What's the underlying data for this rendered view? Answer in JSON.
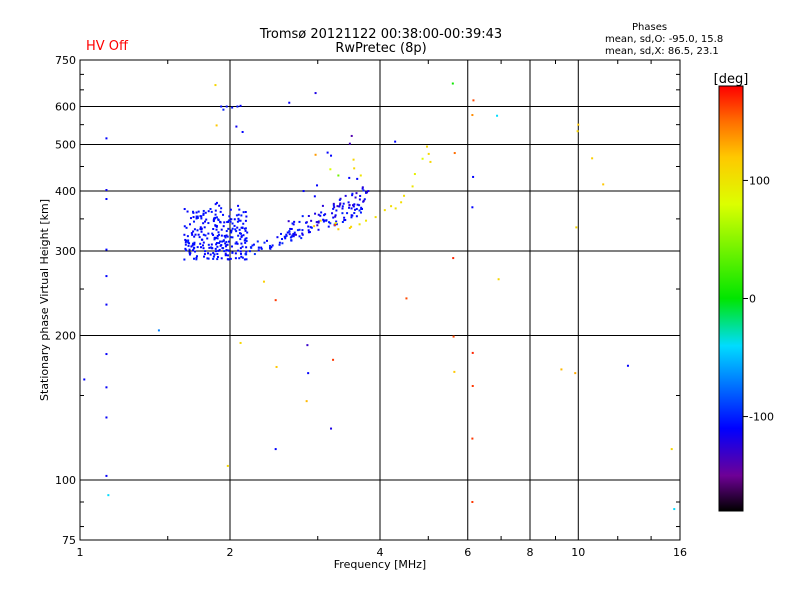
{
  "header": {
    "title_line1": "Tromsø 20121122 00:38:00-00:39:43",
    "title_line2": "RwPretec (8p)",
    "hv_status": "HV Off",
    "phases_title": "Phases",
    "phases_o": "mean, sd,O: -95.0, 15.8",
    "phases_x": "mean, sd,X: 86.5, 23.1"
  },
  "colorbar": {
    "label": "[deg]",
    "ticks": [
      100,
      0,
      -100
    ],
    "range": [
      -180,
      180
    ]
  },
  "chart_data": {
    "type": "scatter",
    "xlabel": "Frequency [MHz]",
    "ylabel": "Stationary phase Virtual Height [km]",
    "x_scale": "log",
    "y_scale": "log",
    "xlim": [
      1,
      16
    ],
    "ylim": [
      75,
      750
    ],
    "x_ticks": [
      1,
      2,
      4,
      6,
      8,
      10,
      16
    ],
    "x_ticklabels": [
      "1",
      "2",
      "4",
      "6",
      "8",
      "10",
      "16"
    ],
    "y_ticks": [
      75,
      100,
      200,
      300,
      400,
      500,
      600,
      750
    ],
    "y_ticklabels": [
      "75",
      "100",
      "200",
      "300",
      "400",
      "500",
      "600",
      "750"
    ],
    "grid": true,
    "series": [
      {
        "points": [
          [
            1.13,
            515,
            -110
          ],
          [
            1.13,
            402,
            -115
          ],
          [
            1.13,
            385,
            -110
          ],
          [
            1.13,
            302,
            -110
          ],
          [
            1.13,
            266,
            -110
          ],
          [
            1.13,
            232,
            -112
          ],
          [
            1.13,
            183,
            -112
          ],
          [
            1.13,
            156,
            -112
          ],
          [
            1.13,
            135,
            -112
          ],
          [
            1.13,
            102,
            -112
          ],
          [
            1.14,
            93,
            -40
          ],
          [
            1.44,
            205,
            -70
          ],
          [
            1.62,
            288,
            -105
          ],
          [
            1.87,
            665,
            110
          ],
          [
            1.88,
            548,
            120
          ],
          [
            1.92,
            600,
            -105
          ],
          [
            1.94,
            591,
            -100
          ],
          [
            1.97,
            600,
            -105
          ],
          [
            2.02,
            597,
            -105
          ],
          [
            2.07,
            600,
            -105
          ],
          [
            2.1,
            602,
            -110
          ],
          [
            2.06,
            545,
            -115
          ],
          [
            2.12,
            531,
            -110
          ],
          [
            2.63,
            611,
            -112
          ],
          [
            2.97,
            640,
            -120
          ],
          [
            3.51,
            521,
            -140
          ],
          [
            3.48,
            502,
            -135
          ],
          [
            2.97,
            476,
            135
          ],
          [
            2.99,
            411,
            -110
          ],
          [
            2.81,
            400,
            -110
          ],
          [
            2.96,
            390,
            -110
          ],
          [
            3.14,
            481,
            -110
          ],
          [
            3.19,
            474,
            -110
          ],
          [
            3.18,
            444,
            80
          ],
          [
            3.3,
            431,
            40
          ],
          [
            3.47,
            426,
            -110
          ],
          [
            3.6,
            424,
            -110
          ],
          [
            3.66,
            431,
            100
          ],
          [
            3.55,
            446,
            110
          ],
          [
            3.54,
            465,
            110
          ],
          [
            4.29,
            507,
            -110
          ],
          [
            4.97,
            495,
            110
          ],
          [
            5.01,
            478,
            110
          ],
          [
            5.05,
            460,
            110
          ],
          [
            5.65,
            480,
            150
          ],
          [
            4.87,
            467,
            80
          ],
          [
            4.7,
            434,
            90
          ],
          [
            4.65,
            409,
            100
          ],
          [
            4.47,
            391,
            105
          ],
          [
            4.41,
            379,
            105
          ],
          [
            4.3,
            368,
            100
          ],
          [
            4.21,
            372,
            105
          ],
          [
            4.09,
            365,
            105
          ],
          [
            3.92,
            353,
            105
          ],
          [
            3.75,
            347,
            100
          ],
          [
            3.64,
            341,
            100
          ],
          [
            3.5,
            337,
            110
          ],
          [
            3.3,
            333,
            115
          ],
          [
            3.26,
            343,
            80
          ],
          [
            3.04,
            347,
            110
          ],
          [
            2.95,
            338,
            120
          ],
          [
            3.79,
            400,
            -120
          ],
          [
            6.16,
            618,
            160
          ],
          [
            6.13,
            576,
            140
          ],
          [
            6.15,
            428,
            -110
          ],
          [
            6.13,
            370,
            -110
          ],
          [
            5.61,
            290,
            170
          ],
          [
            4.52,
            239,
            160
          ],
          [
            3.48,
            335,
            115
          ],
          [
            3.25,
            340,
            160
          ],
          [
            2.47,
            237,
            165
          ],
          [
            2.34,
            259,
            115
          ],
          [
            2.1,
            193,
            110
          ],
          [
            2.48,
            172,
            120
          ],
          [
            3.22,
            178,
            165
          ],
          [
            2.86,
            191,
            -130
          ],
          [
            2.87,
            167,
            -110
          ],
          [
            2.85,
            146,
            125
          ],
          [
            3.19,
            128,
            -120
          ],
          [
            2.47,
            116,
            -110
          ],
          [
            1.98,
            107,
            110
          ],
          [
            1.02,
            162,
            -110
          ],
          [
            5.62,
            199,
            160
          ],
          [
            5.64,
            168,
            120
          ],
          [
            6.14,
            184,
            170
          ],
          [
            6.14,
            157,
            165
          ],
          [
            6.13,
            122,
            165
          ],
          [
            6.13,
            90,
            165
          ],
          [
            5.6,
            670,
            5
          ],
          [
            6.87,
            574,
            -40
          ],
          [
            6.92,
            262,
            110
          ],
          [
            9.25,
            170,
            125
          ],
          [
            9.86,
            167,
            130
          ],
          [
            10.0,
            550,
            120
          ],
          [
            9.97,
            533,
            110
          ],
          [
            10.66,
            468,
            115
          ],
          [
            11.22,
            413,
            120
          ],
          [
            9.91,
            336,
            110
          ],
          [
            12.58,
            173,
            -110
          ],
          [
            15.4,
            116,
            110
          ],
          [
            15.58,
            87,
            -40
          ]
        ]
      }
    ]
  }
}
